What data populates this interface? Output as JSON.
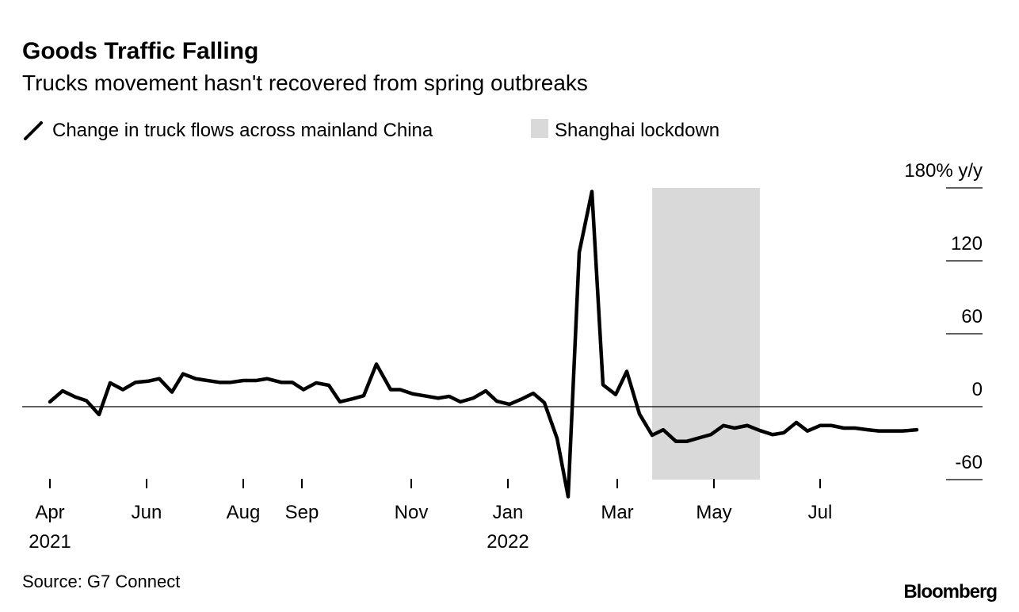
{
  "chart_data": {
    "type": "line",
    "title": "Goods Traffic Falling",
    "subtitle": "Trucks movement hasn't recovered from spring outbreaks",
    "legend": {
      "line_label": "Change in truck flows across mainland China",
      "shade_label": "Shanghai lockdown",
      "placement": "top-left"
    },
    "x_unit": "days since 2021-04-01",
    "xlim": [
      0,
      547
    ],
    "x_ticks": [
      {
        "day": 0,
        "label": "Apr",
        "year": "2021"
      },
      {
        "day": 61,
        "label": "Jun",
        "year": ""
      },
      {
        "day": 122,
        "label": "Aug",
        "year": ""
      },
      {
        "day": 159,
        "label": "Sep",
        "year": ""
      },
      {
        "day": 228,
        "label": "Nov",
        "year": ""
      },
      {
        "day": 289,
        "label": "Jan",
        "year": "2022"
      },
      {
        "day": 358,
        "label": "Mar",
        "year": ""
      },
      {
        "day": 419,
        "label": "May",
        "year": ""
      },
      {
        "day": 486,
        "label": "Jul",
        "year": ""
      }
    ],
    "ylim": [
      -60,
      180
    ],
    "y_ticks": [
      {
        "value": 180,
        "label": "180% y/y"
      },
      {
        "value": 120,
        "label": "120"
      },
      {
        "value": 60,
        "label": "60"
      },
      {
        "value": 0,
        "label": "0"
      },
      {
        "value": -60,
        "label": "-60"
      }
    ],
    "shaded_range": [
      380,
      448
    ],
    "series": [
      {
        "name": "Change in truck flows across mainland China",
        "points": [
          [
            0,
            4
          ],
          [
            8,
            13
          ],
          [
            16,
            8
          ],
          [
            23,
            5
          ],
          [
            31,
            -6.5
          ],
          [
            38,
            19.6
          ],
          [
            46,
            14
          ],
          [
            54,
            20
          ],
          [
            62,
            21
          ],
          [
            69,
            23
          ],
          [
            77,
            12
          ],
          [
            84,
            27
          ],
          [
            92,
            23
          ],
          [
            107,
            20
          ],
          [
            114,
            20
          ],
          [
            122,
            21.5
          ],
          [
            130,
            21.5
          ],
          [
            137,
            23
          ],
          [
            146,
            20
          ],
          [
            153,
            20
          ],
          [
            160,
            14
          ],
          [
            168,
            19.6
          ],
          [
            176,
            17.6
          ],
          [
            183,
            4
          ],
          [
            191,
            6.5
          ],
          [
            198,
            9
          ],
          [
            206,
            35
          ],
          [
            215,
            14
          ],
          [
            221,
            14
          ],
          [
            229,
            10.5
          ],
          [
            236,
            9
          ],
          [
            245,
            7
          ],
          [
            252,
            8.5
          ],
          [
            259,
            4
          ],
          [
            267,
            7
          ],
          [
            275,
            13
          ],
          [
            282,
            4.5
          ],
          [
            290,
            2
          ],
          [
            298,
            6.5
          ],
          [
            305,
            11
          ],
          [
            312,
            3.3
          ],
          [
            320,
            -26
          ],
          [
            327,
            -74
          ],
          [
            334,
            127
          ],
          [
            342,
            177
          ],
          [
            349,
            18
          ],
          [
            357,
            10
          ],
          [
            364,
            29
          ],
          [
            372,
            -6
          ],
          [
            380,
            -23.5
          ],
          [
            387,
            -19
          ],
          [
            395,
            -28.5
          ],
          [
            402,
            -28.5
          ],
          [
            410,
            -25.5
          ],
          [
            417,
            -23
          ],
          [
            425,
            -15.5
          ],
          [
            432,
            -17.6
          ],
          [
            440,
            -15.5
          ],
          [
            448,
            -19.6
          ],
          [
            456,
            -23
          ],
          [
            463,
            -21.5
          ],
          [
            471,
            -13
          ],
          [
            478,
            -20
          ],
          [
            486,
            -15.5
          ],
          [
            493,
            -15.5
          ],
          [
            501,
            -17.6
          ],
          [
            508,
            -17.6
          ],
          [
            516,
            -19
          ],
          [
            523,
            -20
          ],
          [
            531,
            -20
          ],
          [
            538,
            -20
          ],
          [
            547,
            -19
          ]
        ]
      }
    ],
    "grid": "horizontal right-side ticks",
    "source": "Source: G7 Connect",
    "logo": "Bloomberg",
    "colors": {
      "line": "#000000",
      "shade": "#d9d9d9",
      "axis": "#000000"
    }
  }
}
